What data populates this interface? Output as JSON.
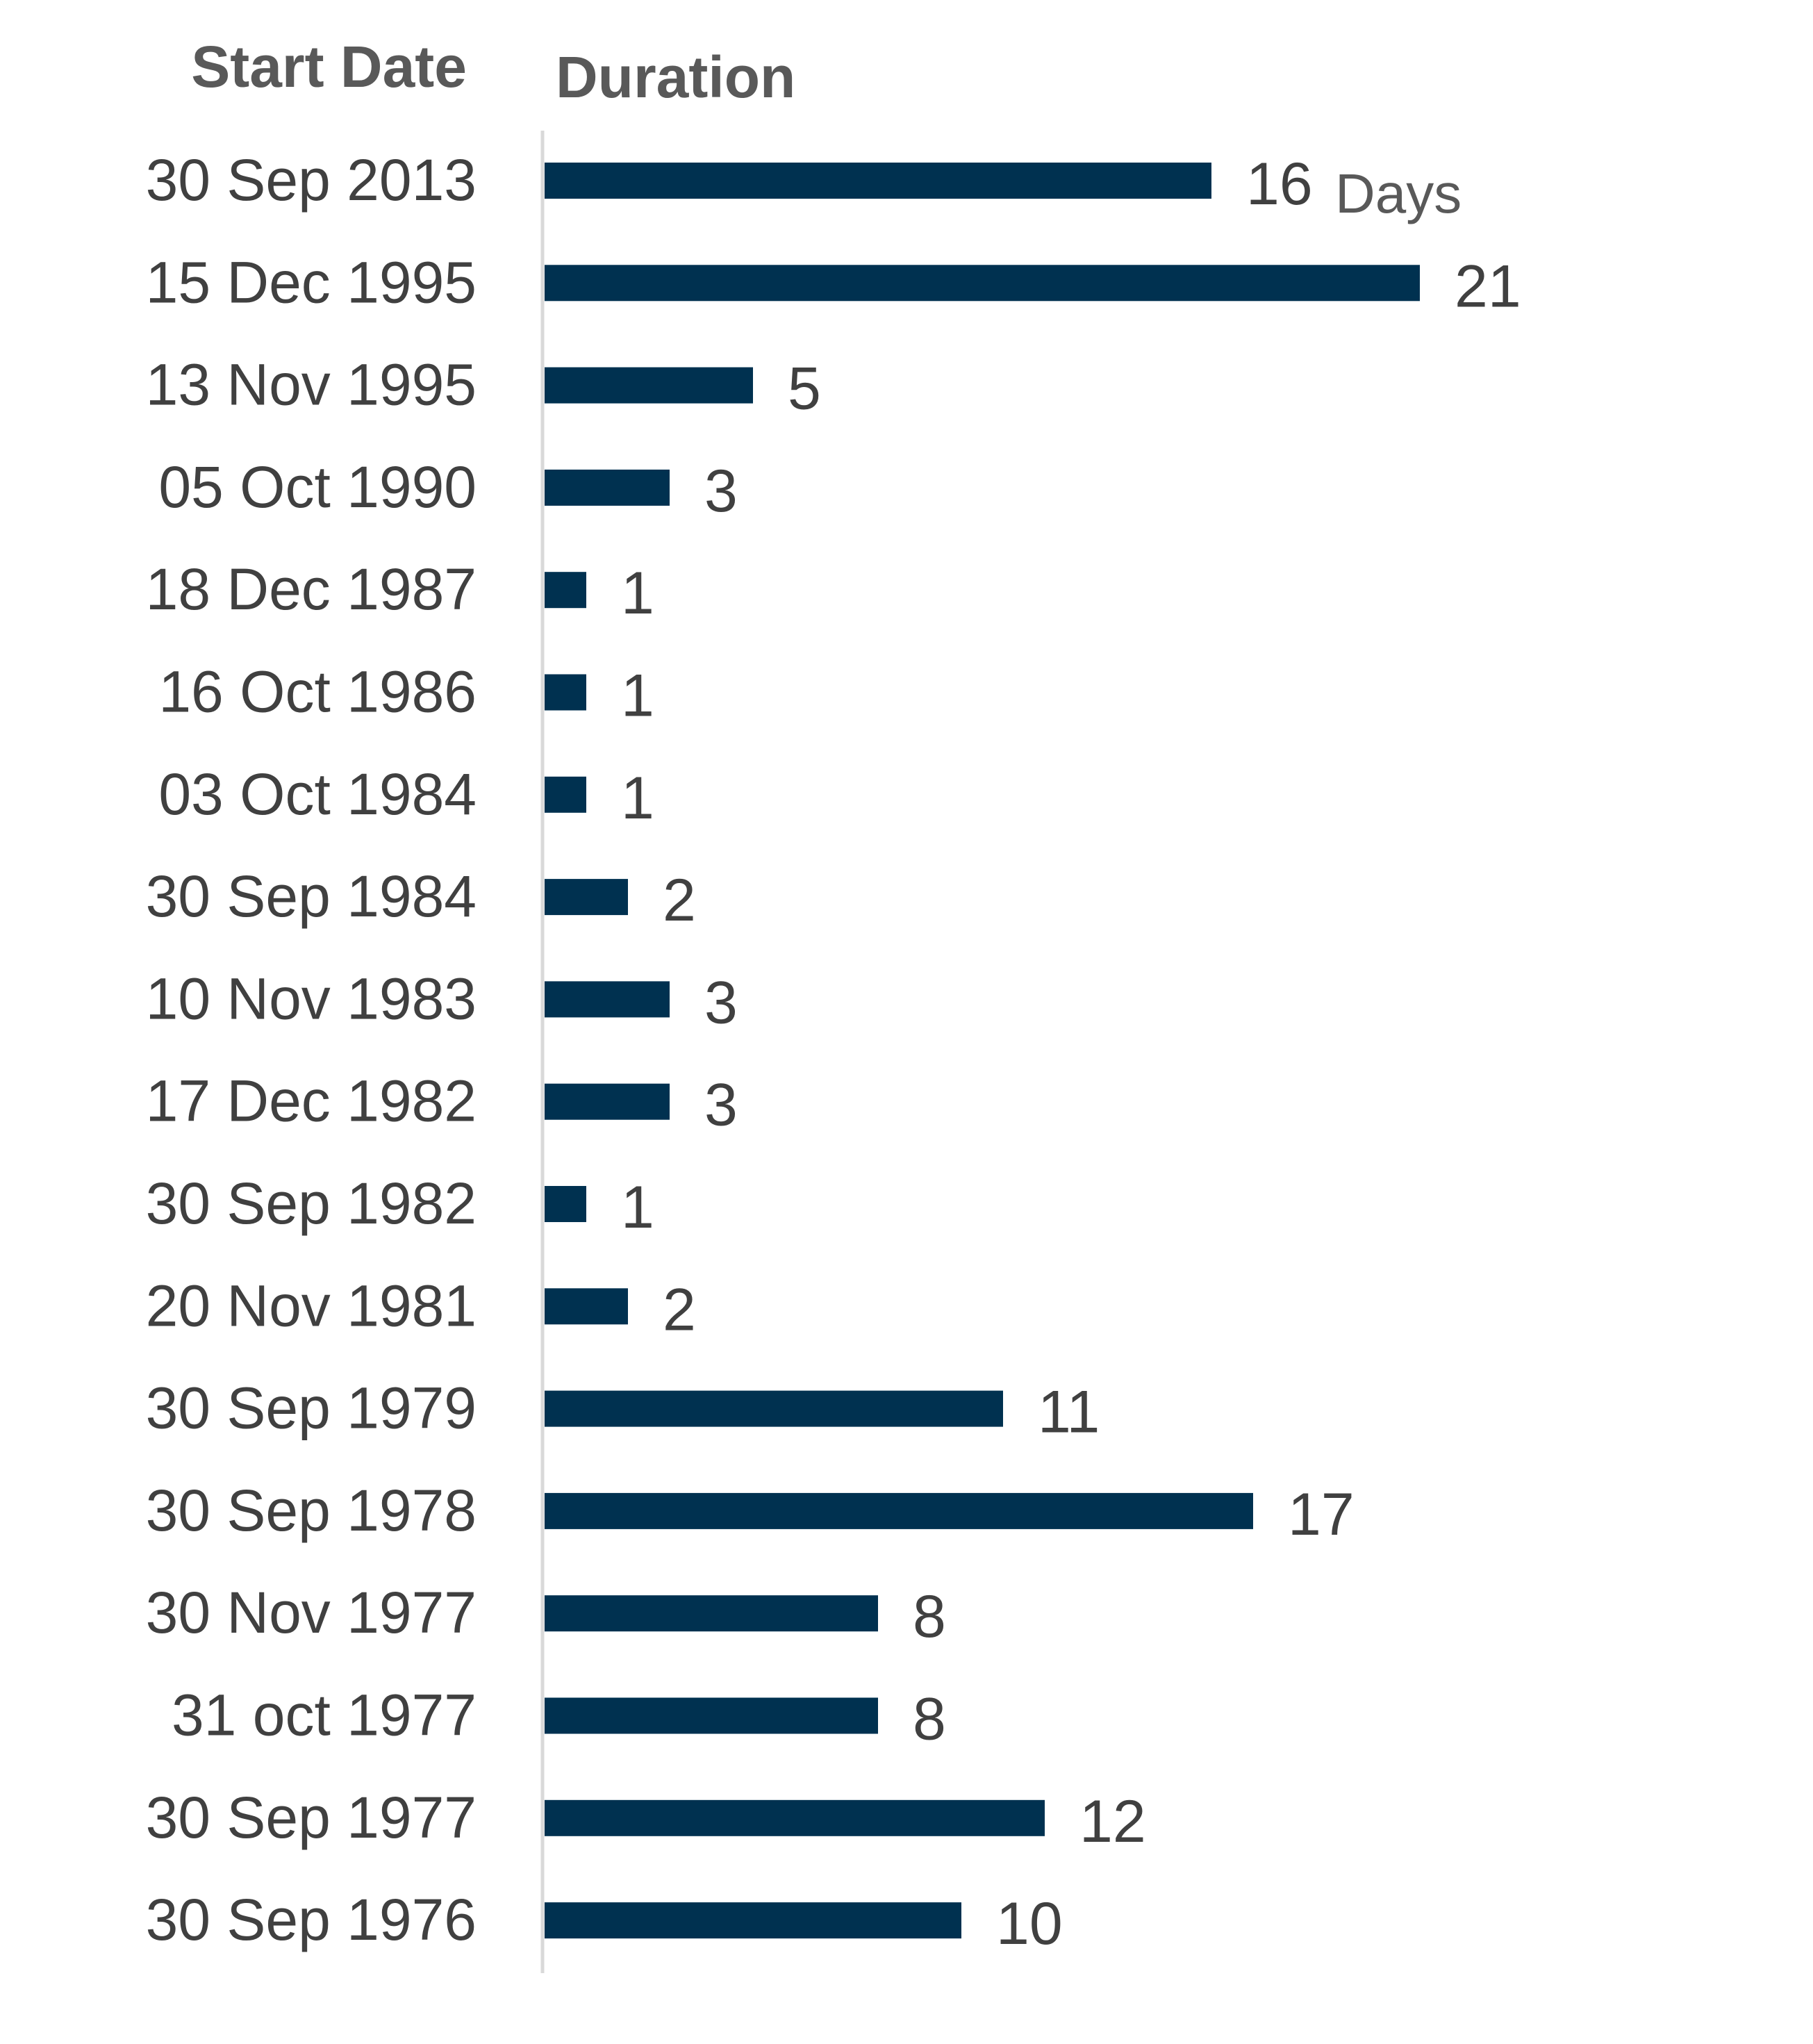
{
  "chart_data": {
    "type": "bar",
    "orientation": "horizontal",
    "category_header": "Start Date",
    "value_header": "Duration",
    "value_unit": "Days",
    "categories": [
      "30 Sep 2013",
      "15 Dec 1995",
      "13 Nov 1995",
      "05 Oct 1990",
      "18 Dec 1987",
      "16 Oct 1986",
      "03 Oct 1984",
      "30 Sep 1984",
      "10 Nov 1983",
      "17 Dec 1982",
      "30 Sep 1982",
      "20 Nov 1981",
      "30 Sep 1979",
      "30 Sep 1978",
      "30 Nov 1977",
      "31 oct 1977",
      "30 Sep 1977",
      "30 Sep 1976"
    ],
    "values": [
      16,
      21,
      5,
      3,
      1,
      1,
      1,
      2,
      3,
      3,
      1,
      2,
      11,
      17,
      8,
      8,
      12,
      10
    ],
    "bar_color": "#003150",
    "axis_color": "#d9d9d9",
    "grid": false,
    "legend": "none"
  }
}
